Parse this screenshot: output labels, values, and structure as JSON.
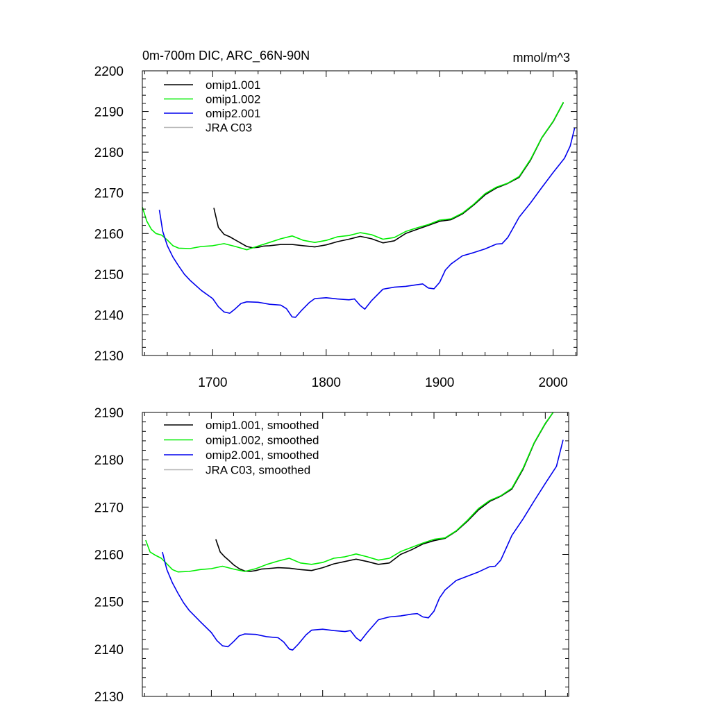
{
  "chart_data": [
    {
      "type": "line",
      "title": "0m-700m DIC, ARC_66N-90N",
      "units": "mmol/m^3",
      "xlabel": "",
      "ylabel": "",
      "xlim": [
        1638,
        2021
      ],
      "ylim": [
        2130,
        2200
      ],
      "xticks": [
        1700,
        1800,
        1900,
        2000
      ],
      "xtick_labels": [
        "1700",
        "1800",
        "1900",
        "2000"
      ],
      "yticks": [
        2130,
        2140,
        2150,
        2160,
        2170,
        2180,
        2190,
        2200
      ],
      "ytick_labels": [
        "2130",
        "2140",
        "2150",
        "2160",
        "2170",
        "2180",
        "2190",
        "2200"
      ],
      "legend_position": "top-left",
      "series": [
        {
          "name": "omip1.001",
          "color": "#000000",
          "x": [
            1701,
            1705,
            1710,
            1715,
            1720,
            1725,
            1730,
            1735,
            1740,
            1745,
            1750,
            1760,
            1770,
            1780,
            1790,
            1800,
            1810,
            1820,
            1830,
            1840,
            1850,
            1860,
            1870,
            1880,
            1890,
            1900,
            1910,
            1920,
            1930,
            1940,
            1950,
            1960,
            1970,
            1980,
            1990,
            2000,
            2009
          ],
          "y": [
            2166.3,
            2161.5,
            2159.8,
            2159.2,
            2158.4,
            2157.6,
            2156.8,
            2156.5,
            2156.6,
            2156.9,
            2157.0,
            2157.3,
            2157.3,
            2157.0,
            2156.7,
            2157.2,
            2158.0,
            2158.6,
            2159.3,
            2158.7,
            2157.7,
            2158.2,
            2160.0,
            2161.0,
            2162.0,
            2163.0,
            2163.4,
            2164.8,
            2167.0,
            2169.5,
            2171.2,
            2172.3,
            2173.8,
            2178.0,
            2183.5,
            2187.5,
            2192.2
          ]
        },
        {
          "name": "omip1.002",
          "color": "#00ee00",
          "x": [
            1638,
            1642,
            1646,
            1650,
            1655,
            1660,
            1665,
            1670,
            1680,
            1690,
            1700,
            1710,
            1720,
            1730,
            1740,
            1750,
            1760,
            1770,
            1780,
            1790,
            1800,
            1810,
            1820,
            1830,
            1840,
            1850,
            1860,
            1870,
            1880,
            1890,
            1900,
            1910,
            1920,
            1930,
            1940,
            1950,
            1960,
            1970,
            1980,
            1990,
            2000,
            2009
          ],
          "y": [
            2166.5,
            2163.0,
            2161.0,
            2160.0,
            2159.6,
            2158.4,
            2157.0,
            2156.4,
            2156.3,
            2156.8,
            2157.0,
            2157.5,
            2156.8,
            2156.0,
            2156.9,
            2157.8,
            2158.7,
            2159.4,
            2158.3,
            2157.8,
            2158.3,
            2159.2,
            2159.5,
            2160.2,
            2159.7,
            2158.6,
            2159.0,
            2160.5,
            2161.4,
            2162.2,
            2163.3,
            2163.6,
            2165.0,
            2167.2,
            2169.8,
            2171.4,
            2172.4,
            2174.0,
            2178.2,
            2183.6,
            2187.6,
            2192.3
          ]
        },
        {
          "name": "omip2.001",
          "color": "#0000ee",
          "x": [
            1653,
            1656,
            1660,
            1665,
            1670,
            1675,
            1680,
            1690,
            1700,
            1705,
            1710,
            1715,
            1720,
            1725,
            1730,
            1740,
            1750,
            1760,
            1765,
            1770,
            1773,
            1778,
            1785,
            1790,
            1800,
            1810,
            1820,
            1825,
            1830,
            1834,
            1840,
            1850,
            1860,
            1870,
            1880,
            1885,
            1890,
            1895,
            1900,
            1905,
            1910,
            1915,
            1920,
            1930,
            1940,
            1950,
            1955,
            1960,
            1965,
            1970,
            1980,
            1990,
            2000,
            2010,
            2015,
            2019
          ],
          "y": [
            2165.8,
            2160.5,
            2157.0,
            2154.2,
            2152.0,
            2150.0,
            2148.5,
            2146.0,
            2144.0,
            2142.0,
            2140.7,
            2140.4,
            2141.5,
            2142.8,
            2143.2,
            2143.1,
            2142.6,
            2142.4,
            2141.5,
            2139.5,
            2139.4,
            2141.0,
            2143.0,
            2144.0,
            2144.2,
            2143.9,
            2143.7,
            2143.9,
            2142.3,
            2141.4,
            2143.5,
            2146.3,
            2146.8,
            2147.0,
            2147.4,
            2147.6,
            2146.6,
            2146.4,
            2148.0,
            2151.0,
            2152.5,
            2153.5,
            2154.5,
            2155.3,
            2156.2,
            2157.4,
            2157.5,
            2159.0,
            2161.5,
            2164.0,
            2167.5,
            2171.3,
            2175.0,
            2178.5,
            2181.5,
            2186.0
          ]
        },
        {
          "name": "JRA C03",
          "color": "#b4b4b4",
          "x": [],
          "y": []
        }
      ]
    },
    {
      "type": "line",
      "title": "",
      "xlabel": "",
      "ylabel": "",
      "xlim": [
        1638,
        2021
      ],
      "ylim": [
        2130,
        2190
      ],
      "xticks": [
        1700,
        1800,
        1900,
        2000
      ],
      "yticks": [
        2130,
        2140,
        2150,
        2160,
        2170,
        2180,
        2190
      ],
      "ytick_labels": [
        "2130",
        "2140",
        "2150",
        "2160",
        "2170",
        "2180",
        "2190"
      ],
      "legend_position": "top-left",
      "series": [
        {
          "name": "omip1.001, smoothed",
          "color": "#000000",
          "x": [
            1704,
            1708,
            1712,
            1716,
            1720,
            1725,
            1730,
            1735,
            1740,
            1745,
            1750,
            1760,
            1770,
            1780,
            1790,
            1800,
            1810,
            1820,
            1830,
            1840,
            1850,
            1860,
            1870,
            1880,
            1890,
            1900,
            1910,
            1920,
            1930,
            1940,
            1950,
            1960,
            1970,
            1980,
            1990,
            2000,
            2007
          ],
          "y": [
            2163.2,
            2160.5,
            2159.5,
            2158.7,
            2157.8,
            2157.0,
            2156.5,
            2156.4,
            2156.6,
            2156.9,
            2157.0,
            2157.2,
            2157.1,
            2156.8,
            2156.6,
            2157.2,
            2158.0,
            2158.5,
            2159.0,
            2158.5,
            2157.9,
            2158.2,
            2160.0,
            2161.0,
            2162.2,
            2162.9,
            2163.4,
            2164.9,
            2167.0,
            2169.4,
            2171.2,
            2172.3,
            2173.8,
            2178.0,
            2183.5,
            2187.6,
            2190.0
          ]
        },
        {
          "name": "omip1.002, smoothed",
          "color": "#00ee00",
          "x": [
            1641,
            1645,
            1650,
            1655,
            1660,
            1665,
            1670,
            1680,
            1690,
            1700,
            1710,
            1720,
            1730,
            1740,
            1750,
            1760,
            1770,
            1780,
            1790,
            1800,
            1810,
            1820,
            1830,
            1840,
            1850,
            1860,
            1870,
            1880,
            1890,
            1900,
            1910,
            1920,
            1930,
            1940,
            1950,
            1960,
            1970,
            1980,
            1990,
            2000,
            2007
          ],
          "y": [
            2163.0,
            2160.5,
            2159.8,
            2159.2,
            2158.0,
            2156.8,
            2156.3,
            2156.4,
            2156.8,
            2157.0,
            2157.5,
            2156.9,
            2156.4,
            2157.0,
            2157.9,
            2158.6,
            2159.2,
            2158.2,
            2157.9,
            2158.3,
            2159.2,
            2159.5,
            2160.1,
            2159.5,
            2158.8,
            2159.2,
            2160.6,
            2161.5,
            2162.4,
            2163.2,
            2163.5,
            2165.0,
            2167.2,
            2169.7,
            2171.4,
            2172.4,
            2174.0,
            2178.2,
            2183.6,
            2187.7,
            2190.0
          ]
        },
        {
          "name": "omip2.001, smoothed",
          "color": "#0000ee",
          "x": [
            1656,
            1660,
            1665,
            1670,
            1675,
            1680,
            1690,
            1700,
            1705,
            1710,
            1715,
            1720,
            1725,
            1730,
            1740,
            1750,
            1760,
            1765,
            1770,
            1773,
            1778,
            1785,
            1790,
            1800,
            1810,
            1820,
            1825,
            1830,
            1834,
            1840,
            1850,
            1860,
            1870,
            1880,
            1885,
            1890,
            1895,
            1900,
            1905,
            1910,
            1915,
            1920,
            1930,
            1940,
            1950,
            1955,
            1960,
            1965,
            1970,
            1980,
            1990,
            2000,
            2010,
            2016
          ],
          "y": [
            2160.5,
            2156.8,
            2154.0,
            2151.8,
            2149.8,
            2148.2,
            2145.8,
            2143.5,
            2141.8,
            2140.7,
            2140.5,
            2141.6,
            2142.8,
            2143.2,
            2143.1,
            2142.6,
            2142.4,
            2141.5,
            2140.0,
            2139.8,
            2141.0,
            2143.0,
            2144.0,
            2144.2,
            2143.9,
            2143.7,
            2143.9,
            2142.4,
            2141.7,
            2143.5,
            2146.2,
            2146.8,
            2147.0,
            2147.4,
            2147.5,
            2146.8,
            2146.6,
            2148.0,
            2150.8,
            2152.5,
            2153.5,
            2154.5,
            2155.4,
            2156.3,
            2157.4,
            2157.5,
            2158.8,
            2161.4,
            2164.0,
            2167.5,
            2171.3,
            2175.0,
            2178.6,
            2184.2
          ]
        },
        {
          "name": "JRA C03, smoothed",
          "color": "#b4b4b4",
          "x": [],
          "y": []
        }
      ]
    }
  ]
}
